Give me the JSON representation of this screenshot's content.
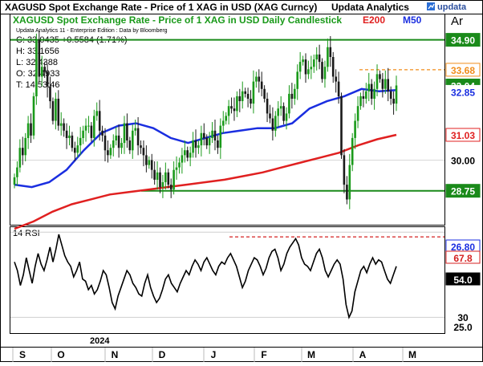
{
  "header": {
    "title": "XAGUSD Spot Exchange Rate - Price of 1 XAG in USD (XAG Curncy)",
    "brand": "Updata Analytics",
    "logo_text": "updata",
    "subtitle": "XAGUSD Spot Exchange Rate - Price of 1 XAG in USD Daily Candlestick",
    "legend_e200": "E200",
    "legend_m50": "M50",
    "corner_label": "Ar"
  },
  "info": {
    "credit": "Updata Analytics 11 - Enterprise Edition : Data by Bloomberg",
    "close": "C: 33.0435  +0.5584 (1.71%)",
    "high": "H: 33.1656",
    "low": "L: 32.4388",
    "open": "O: 32.4933",
    "time": "T: 14:53:46"
  },
  "colors": {
    "title": "#000000",
    "subtitle": "#1a9a1a",
    "e200": "#e02020",
    "m50": "#1a2ee0",
    "candle_up": "#1a9a1a",
    "candle_down": "#1a1a1a",
    "level_line": "#1a8a1a",
    "dashed": "#f08c1a",
    "rsi_dashed": "#d42020"
  },
  "chart_data": [
    {
      "type": "candlestick",
      "title": "XAGUSD Spot Exchange Rate - Price of 1 XAG in USD Daily Candlestick",
      "ylim": [
        27.4,
        35.9
      ],
      "yticks": [
        30.0
      ],
      "xticks": [
        "S",
        "O",
        "N",
        "D",
        "J",
        "F",
        "M",
        "A",
        "M"
      ],
      "year_label": "2024",
      "series": [
        {
          "name": "E200",
          "values": [
            27.2,
            27.5,
            27.9,
            28.2,
            28.4,
            28.6,
            28.7,
            28.8,
            28.9,
            29.0,
            29.1,
            29.2,
            29.35,
            29.5,
            29.7,
            29.9,
            30.1,
            30.3,
            30.6,
            30.85,
            31.03
          ]
        },
        {
          "name": "M50",
          "values": [
            29.0,
            28.9,
            29.1,
            29.6,
            30.4,
            31.1,
            31.4,
            31.5,
            31.3,
            30.9,
            30.7,
            30.9,
            31.1,
            31.2,
            31.3,
            31.3,
            31.5,
            32.1,
            32.4,
            32.6,
            32.9,
            32.8,
            32.85
          ]
        }
      ],
      "candles_close": [
        29.3,
        29.7,
        30.5,
        30.2,
        30.9,
        31.5,
        31.0,
        32.6,
        34.9,
        33.4,
        33.8,
        33.6,
        33.0,
        32.4,
        31.6,
        32.5,
        31.4,
        31.5,
        31.2,
        30.9,
        31.0,
        30.5,
        30.3,
        30.6,
        30.9,
        31.2,
        31.4,
        31.4,
        30.9,
        31.8,
        32.0,
        31.2,
        31.0,
        30.4,
        30.2,
        30.5,
        30.8,
        31.0,
        30.5,
        30.7,
        31.5,
        30.8,
        30.4,
        31.2,
        31.3,
        30.6,
        30.5,
        30.2,
        29.8,
        30.0,
        29.6,
        29.2,
        29.5,
        28.9,
        29.1,
        29.5,
        29.0,
        28.8,
        29.6,
        29.7,
        29.9,
        30.2,
        30.4,
        30.1,
        30.3,
        30.8,
        30.5,
        30.6,
        31.1,
        30.9,
        30.6,
        30.9,
        31.2,
        30.8,
        30.5,
        31.4,
        31.6,
        31.8,
        32.2,
        32.1,
        32.0,
        32.6,
        32.4,
        32.8,
        32.7,
        32.5,
        32.3,
        33.2,
        33.4,
        33.2,
        32.9,
        32.5,
        31.9,
        31.7,
        31.2,
        31.8,
        32.1,
        32.2,
        31.6,
        31.9,
        32.7,
        32.5,
        32.9,
        33.6,
        34.0,
        34.1,
        33.5,
        33.7,
        33.8,
        34.1,
        34.3,
        34.0,
        33.3,
        33.8,
        34.6,
        34.2,
        33.4,
        33.2,
        32.6,
        30.2,
        29.0,
        28.4,
        29.8,
        30.9,
        31.6,
        32.2,
        32.6,
        32.5,
        32.8,
        33.1,
        32.5,
        32.9,
        33.5,
        33.3,
        32.9,
        33.3,
        32.8,
        32.5,
        32.3,
        33.04
      ],
      "horizontal_levels": [
        34.9,
        28.75
      ],
      "dashed_level": 33.68,
      "price_labels": [
        "34.90",
        "33.68",
        "33.04",
        "32.85",
        "31.03",
        "30.00",
        "28.75"
      ]
    },
    {
      "type": "line",
      "title": "14 RSI",
      "ylim": [
        23,
        72
      ],
      "dashed_level": 67.8,
      "price_labels": [
        "26.80",
        "67.8",
        "54.0",
        "30",
        "25.0"
      ],
      "values": [
        56,
        52,
        45,
        50,
        58,
        52,
        46,
        54,
        60,
        55,
        52,
        57,
        63,
        56,
        62,
        69,
        64,
        59,
        56,
        54,
        49,
        52,
        56,
        48,
        47,
        43,
        45,
        41,
        43,
        47,
        52,
        50,
        44,
        37,
        34,
        40,
        44,
        48,
        52,
        50,
        46,
        44,
        41,
        40,
        46,
        50,
        44,
        40,
        37,
        39,
        43,
        48,
        50,
        46,
        44,
        42,
        46,
        49,
        52,
        50,
        54,
        57,
        55,
        52,
        56,
        58,
        55,
        52,
        50,
        54,
        56,
        55,
        58,
        60,
        57,
        54,
        49,
        44,
        47,
        52,
        55,
        58,
        57,
        54,
        50,
        53,
        58,
        61,
        62,
        58,
        52,
        55,
        60,
        63,
        65,
        67,
        64,
        58,
        55,
        54,
        52,
        56,
        60,
        62,
        58,
        52,
        49,
        52,
        55,
        57,
        55,
        48,
        36,
        30,
        33,
        42,
        47,
        52,
        54,
        51,
        55,
        58,
        55,
        57,
        56,
        52,
        48,
        46,
        50,
        54
      ]
    }
  ]
}
